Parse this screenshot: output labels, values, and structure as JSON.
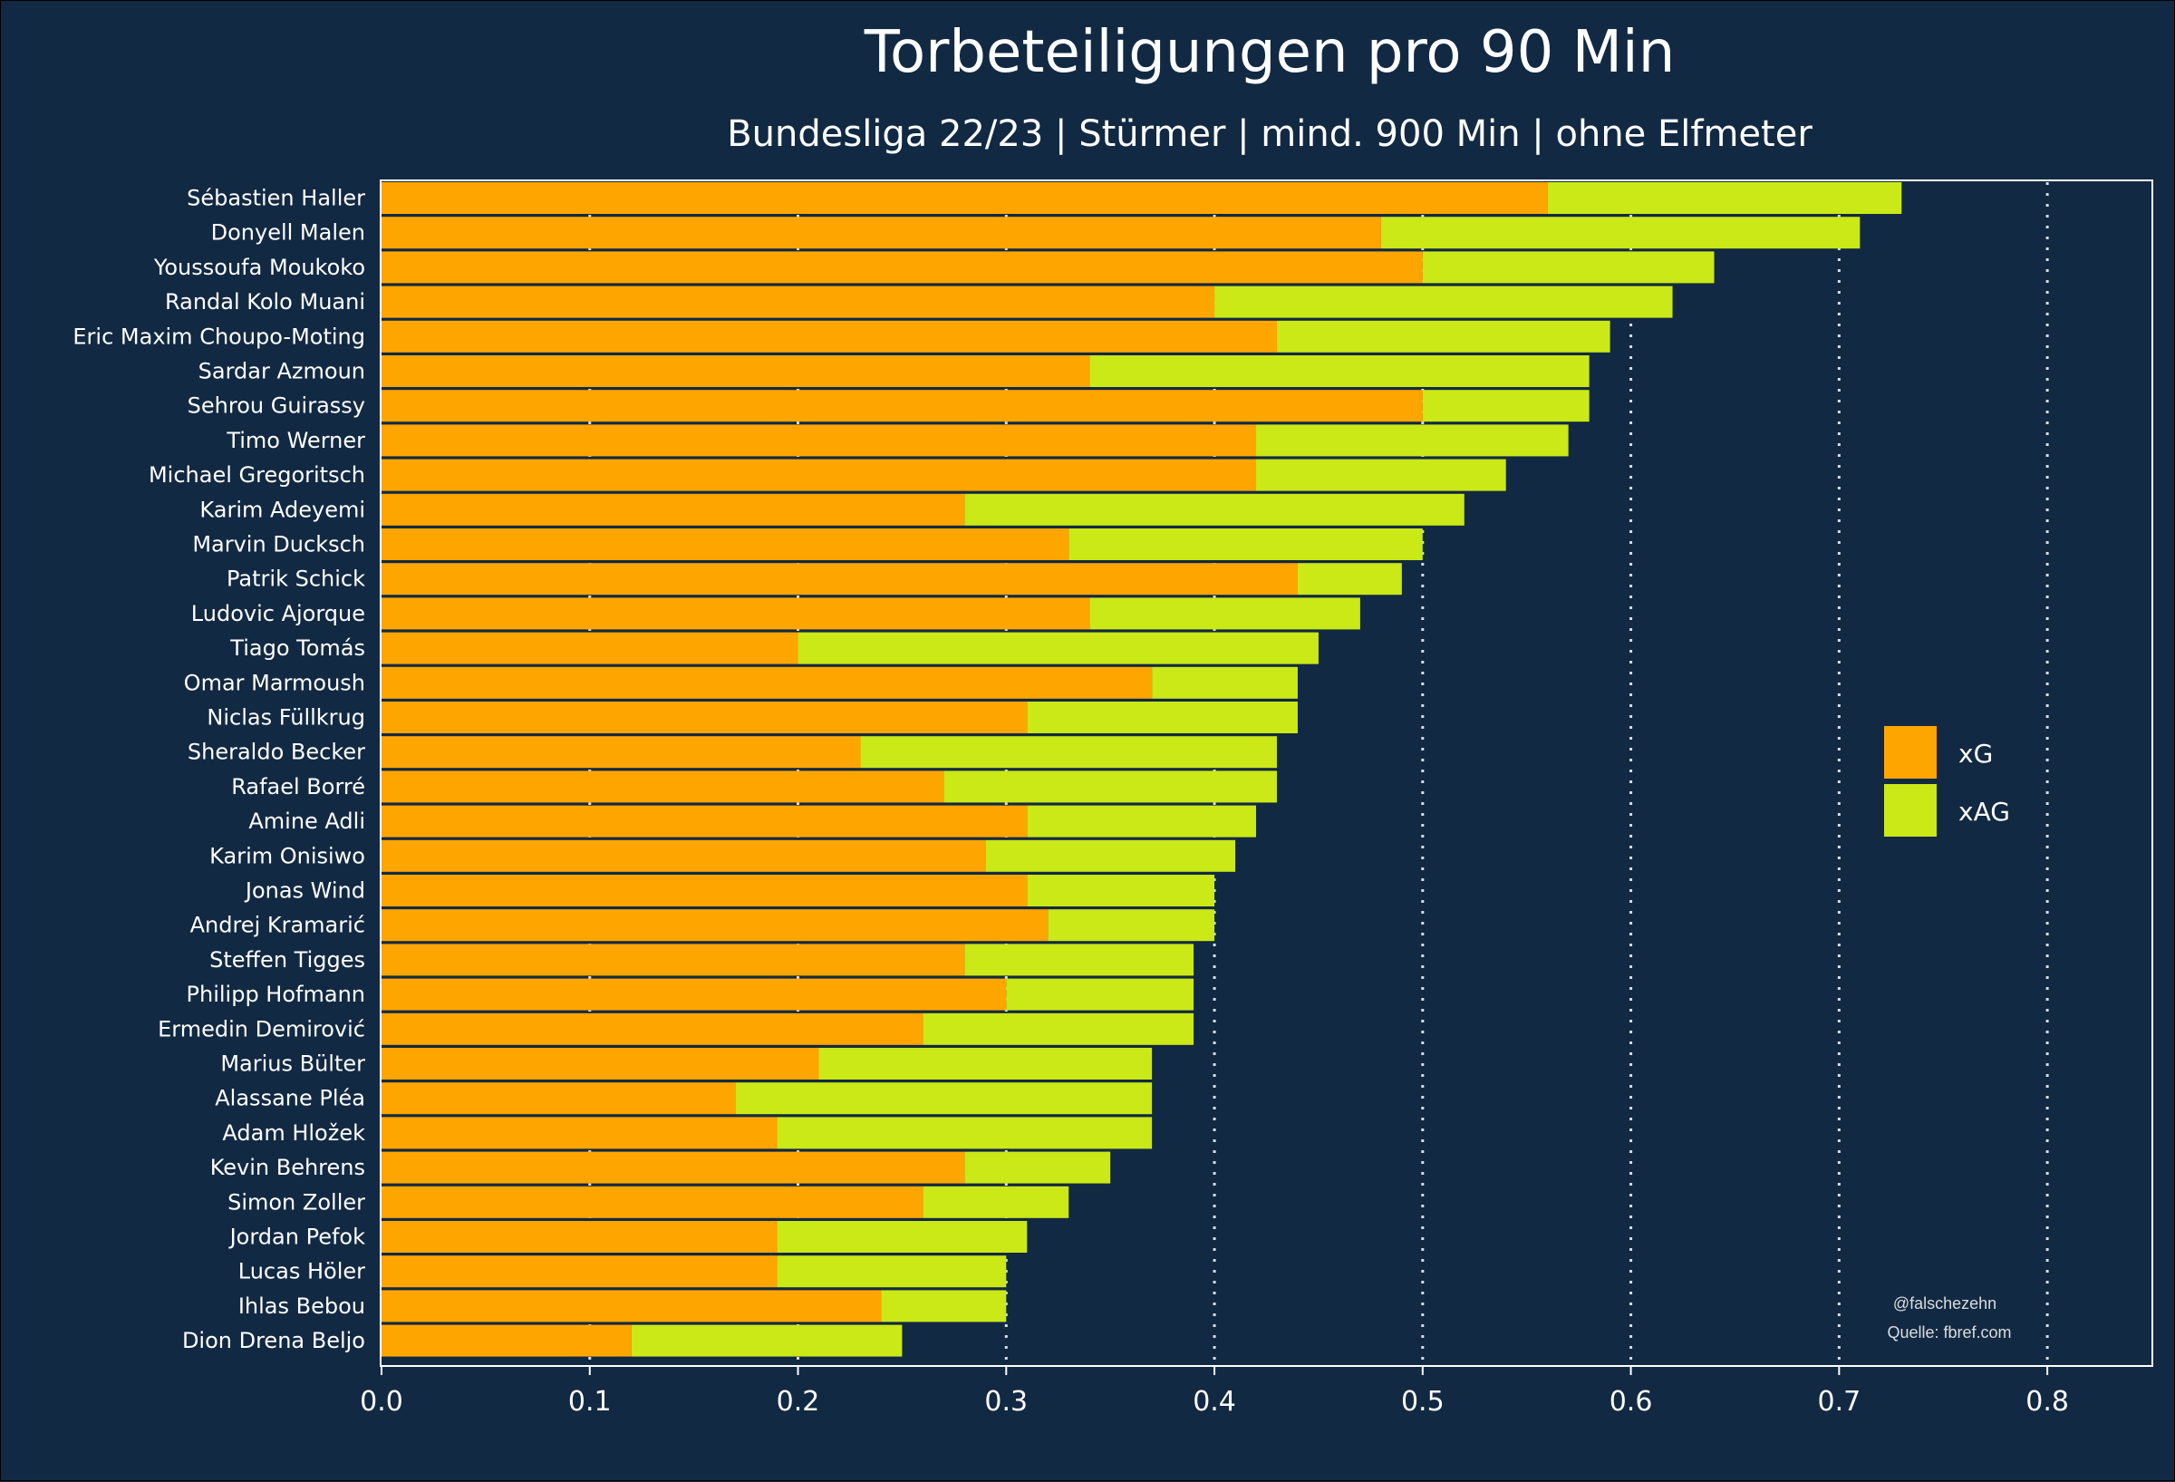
{
  "chart_data": {
    "type": "bar",
    "orientation": "horizontal",
    "stacked": true,
    "title": "Torbeteiligungen pro 90 Min",
    "subtitle": "Bundesliga 22/23 | Stürmer | mind. 900 Min | ohne Elfmeter",
    "xlim": [
      0,
      0.85
    ],
    "x_ticks": [
      "0.0",
      "0.1",
      "0.2",
      "0.3",
      "0.4",
      "0.5",
      "0.6",
      "0.7",
      "0.8"
    ],
    "x_tick_values": [
      0,
      0.1,
      0.2,
      0.3,
      0.4,
      0.5,
      0.6,
      0.7,
      0.8
    ],
    "grid": "vertical dotted",
    "legend_position": "right",
    "categories": [
      "Sébastien Haller",
      "Donyell Malen",
      "Youssoufa Moukoko",
      "Randal Kolo Muani",
      "Eric Maxim Choupo-Moting",
      "Sardar Azmoun",
      "Sehrou Guirassy",
      "Timo Werner",
      "Michael Gregoritsch",
      "Karim Adeyemi",
      "Marvin Ducksch",
      "Patrik Schick",
      "Ludovic Ajorque",
      "Tiago Tomás",
      "Omar Marmoush",
      "Niclas Füllkrug",
      "Sheraldo Becker",
      "Rafael Borré",
      "Amine Adli",
      "Karim Onisiwo",
      "Jonas Wind",
      "Andrej Kramarić",
      "Steffen Tigges",
      "Philipp Hofmann",
      "Ermedin Demirović",
      "Marius Bülter",
      "Alassane Pléa",
      "Adam Hložek",
      "Kevin Behrens",
      "Simon Zoller",
      "Jordan Pefok",
      "Lucas Höler",
      "Ihlas Bebou",
      "Dion Drena Beljo"
    ],
    "series": [
      {
        "name": "xG",
        "color": "#ffa500",
        "values": [
          0.56,
          0.48,
          0.5,
          0.4,
          0.43,
          0.34,
          0.5,
          0.42,
          0.42,
          0.28,
          0.33,
          0.44,
          0.34,
          0.2,
          0.37,
          0.31,
          0.23,
          0.27,
          0.31,
          0.29,
          0.31,
          0.32,
          0.28,
          0.3,
          0.26,
          0.21,
          0.17,
          0.19,
          0.28,
          0.26,
          0.19,
          0.19,
          0.24,
          0.12
        ]
      },
      {
        "name": "xAG",
        "color": "#cbe817",
        "values": [
          0.17,
          0.23,
          0.14,
          0.22,
          0.16,
          0.24,
          0.08,
          0.15,
          0.12,
          0.24,
          0.17,
          0.05,
          0.13,
          0.25,
          0.07,
          0.13,
          0.2,
          0.16,
          0.11,
          0.12,
          0.09,
          0.08,
          0.11,
          0.09,
          0.13,
          0.16,
          0.2,
          0.18,
          0.07,
          0.07,
          0.12,
          0.11,
          0.06,
          0.13
        ]
      }
    ],
    "annotations": [
      "@falschezehn",
      "Quelle: fbref.com"
    ]
  }
}
